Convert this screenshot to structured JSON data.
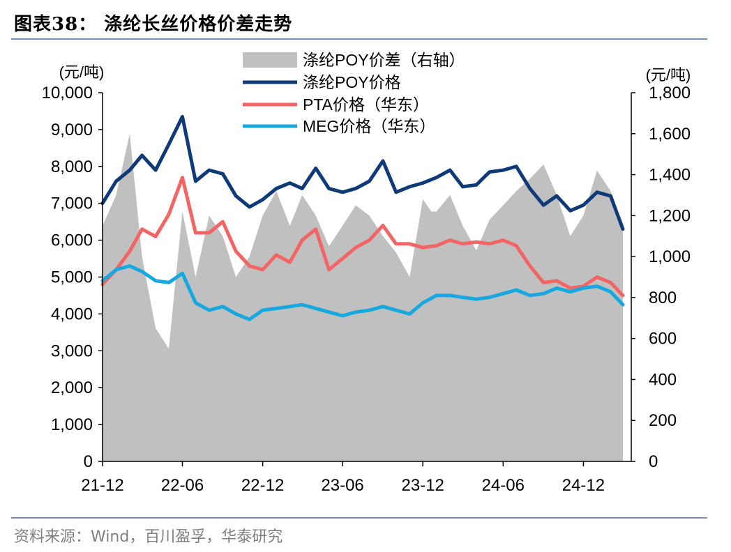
{
  "figure": {
    "title": "图表38：  涤纶长丝价格价差走势",
    "source": "资料来源：Wind，百川盈孚，华泰研究"
  },
  "colors": {
    "spread_fill": "#c0c0c0",
    "poy": "#0f3a78",
    "pta": "#f36565",
    "meg": "#18a8e0",
    "rule": "#6f8fb3"
  },
  "chart_data": {
    "type": "line",
    "secondary_type": "area",
    "title": "",
    "x_ticks": [
      "21-12",
      "22-06",
      "22-12",
      "23-06",
      "23-12",
      "24-06",
      "24-12"
    ],
    "x_range": [
      "2021-12",
      "2025-03"
    ],
    "left_axis": {
      "label": "(元/吨)",
      "min": 0,
      "max": 10000,
      "ticks": [
        "0",
        "1,000",
        "2,000",
        "3,000",
        "4,000",
        "5,000",
        "6,000",
        "7,000",
        "8,000",
        "9,000",
        "10,000"
      ]
    },
    "right_axis": {
      "label": "(元/吨)",
      "min": 0,
      "max": 1800,
      "ticks": [
        "0",
        "200",
        "400",
        "600",
        "800",
        "1,000",
        "1,200",
        "1,400",
        "1,600",
        "1,800"
      ]
    },
    "legend_position": "top-center",
    "series": [
      {
        "name": "涤纶POY价差（右轴）",
        "type": "area",
        "axis": "right",
        "points": [
          [
            "2021-12",
            1150
          ],
          [
            "2022-01",
            1300
          ],
          [
            "2022-02",
            1600
          ],
          [
            "2022-03",
            1000
          ],
          [
            "2022-04",
            650
          ],
          [
            "2022-05",
            550
          ],
          [
            "2022-06",
            1220
          ],
          [
            "2022-07",
            900
          ],
          [
            "2022-08",
            1200
          ],
          [
            "2022-09",
            1100
          ],
          [
            "2022-10",
            900
          ],
          [
            "2022-11",
            1000
          ],
          [
            "2022-12",
            1200
          ],
          [
            "2023-01",
            1320
          ],
          [
            "2023-02",
            1150
          ],
          [
            "2023-03",
            1300
          ],
          [
            "2023-04",
            1200
          ],
          [
            "2023-05",
            1050
          ],
          [
            "2023-06",
            1150
          ],
          [
            "2023-07",
            1250
          ],
          [
            "2023-08",
            1200
          ],
          [
            "2023-09",
            1100
          ],
          [
            "2023-10",
            1020
          ],
          [
            "2023-11",
            900
          ],
          [
            "2023-12",
            1280
          ],
          [
            "2023-12-20",
            1220
          ],
          [
            "2024-01",
            1220
          ],
          [
            "2024-02",
            1300
          ],
          [
            "2024-03",
            1150
          ],
          [
            "2024-04",
            1030
          ],
          [
            "2024-05",
            1180
          ],
          [
            "2024-06",
            1250
          ],
          [
            "2024-07",
            1320
          ],
          [
            "2024-08",
            1380
          ],
          [
            "2024-09",
            1450
          ],
          [
            "2024-10",
            1300
          ],
          [
            "2024-11",
            1100
          ],
          [
            "2024-12",
            1200
          ],
          [
            "2025-01",
            1420
          ],
          [
            "2025-02",
            1320
          ],
          [
            "2025-03",
            1150
          ]
        ]
      },
      {
        "name": "涤纶POY价格",
        "type": "line",
        "axis": "left",
        "points": [
          [
            "2021-12",
            7000
          ],
          [
            "2022-01",
            7600
          ],
          [
            "2022-02",
            7900
          ],
          [
            "2022-03",
            8300
          ],
          [
            "2022-04",
            7900
          ],
          [
            "2022-05",
            8600
          ],
          [
            "2022-06",
            9350
          ],
          [
            "2022-07",
            7600
          ],
          [
            "2022-08",
            7900
          ],
          [
            "2022-09",
            7800
          ],
          [
            "2022-10",
            7200
          ],
          [
            "2022-11",
            6900
          ],
          [
            "2022-12",
            7100
          ],
          [
            "2023-01",
            7400
          ],
          [
            "2023-02",
            7550
          ],
          [
            "2023-03",
            7400
          ],
          [
            "2023-04",
            7950
          ],
          [
            "2023-05",
            7400
          ],
          [
            "2023-06",
            7300
          ],
          [
            "2023-07",
            7400
          ],
          [
            "2023-08",
            7600
          ],
          [
            "2023-09",
            8150
          ],
          [
            "2023-10",
            7300
          ],
          [
            "2023-11",
            7450
          ],
          [
            "2023-12",
            7550
          ],
          [
            "2024-01",
            7700
          ],
          [
            "2024-02",
            7900
          ],
          [
            "2024-03",
            7450
          ],
          [
            "2024-04",
            7500
          ],
          [
            "2024-05",
            7850
          ],
          [
            "2024-06",
            7900
          ],
          [
            "2024-07",
            8000
          ],
          [
            "2024-08",
            7400
          ],
          [
            "2024-09",
            6950
          ],
          [
            "2024-10",
            7200
          ],
          [
            "2024-11",
            6800
          ],
          [
            "2024-12",
            6950
          ],
          [
            "2025-01",
            7300
          ],
          [
            "2025-02",
            7200
          ],
          [
            "2025-03",
            6300
          ]
        ]
      },
      {
        "name": "PTA价格（华东）",
        "type": "line",
        "axis": "left",
        "points": [
          [
            "2021-12",
            4800
          ],
          [
            "2022-01",
            5200
          ],
          [
            "2022-02",
            5700
          ],
          [
            "2022-03",
            6300
          ],
          [
            "2022-04",
            6100
          ],
          [
            "2022-05",
            6700
          ],
          [
            "2022-06",
            7700
          ],
          [
            "2022-07",
            6200
          ],
          [
            "2022-08",
            6200
          ],
          [
            "2022-09",
            6500
          ],
          [
            "2022-10",
            5700
          ],
          [
            "2022-11",
            5300
          ],
          [
            "2022-12",
            5200
          ],
          [
            "2023-01",
            5600
          ],
          [
            "2023-02",
            5400
          ],
          [
            "2023-03",
            6000
          ],
          [
            "2023-04",
            6300
          ],
          [
            "2023-05",
            5200
          ],
          [
            "2023-06",
            5500
          ],
          [
            "2023-07",
            5800
          ],
          [
            "2023-08",
            6000
          ],
          [
            "2023-09",
            6400
          ],
          [
            "2023-10",
            5900
          ],
          [
            "2023-11",
            5900
          ],
          [
            "2023-12",
            5800
          ],
          [
            "2024-01",
            5850
          ],
          [
            "2024-02",
            6000
          ],
          [
            "2024-03",
            5900
          ],
          [
            "2024-04",
            5950
          ],
          [
            "2024-05",
            5900
          ],
          [
            "2024-06",
            6000
          ],
          [
            "2024-07",
            5850
          ],
          [
            "2024-08",
            5300
          ],
          [
            "2024-09",
            4850
          ],
          [
            "2024-10",
            4900
          ],
          [
            "2024-11",
            4700
          ],
          [
            "2024-12",
            4750
          ],
          [
            "2025-01",
            5000
          ],
          [
            "2025-02",
            4850
          ],
          [
            "2025-03",
            4500
          ]
        ]
      },
      {
        "name": "MEG价格（华东）",
        "type": "line",
        "axis": "left",
        "points": [
          [
            "2021-12",
            4900
          ],
          [
            "2022-01",
            5200
          ],
          [
            "2022-02",
            5300
          ],
          [
            "2022-03",
            5150
          ],
          [
            "2022-04",
            4900
          ],
          [
            "2022-05",
            4850
          ],
          [
            "2022-06",
            5100
          ],
          [
            "2022-07",
            4300
          ],
          [
            "2022-08",
            4100
          ],
          [
            "2022-09",
            4200
          ],
          [
            "2022-10",
            4000
          ],
          [
            "2022-11",
            3850
          ],
          [
            "2022-12",
            4100
          ],
          [
            "2023-01",
            4150
          ],
          [
            "2023-02",
            4200
          ],
          [
            "2023-03",
            4250
          ],
          [
            "2023-04",
            4150
          ],
          [
            "2023-05",
            4050
          ],
          [
            "2023-06",
            3950
          ],
          [
            "2023-07",
            4050
          ],
          [
            "2023-08",
            4100
          ],
          [
            "2023-09",
            4200
          ],
          [
            "2023-10",
            4100
          ],
          [
            "2023-11",
            4000
          ],
          [
            "2023-12",
            4300
          ],
          [
            "2024-01",
            4500
          ],
          [
            "2024-02",
            4500
          ],
          [
            "2024-03",
            4450
          ],
          [
            "2024-04",
            4400
          ],
          [
            "2024-05",
            4450
          ],
          [
            "2024-06",
            4550
          ],
          [
            "2024-07",
            4650
          ],
          [
            "2024-08",
            4500
          ],
          [
            "2024-09",
            4550
          ],
          [
            "2024-10",
            4700
          ],
          [
            "2024-11",
            4600
          ],
          [
            "2024-12",
            4700
          ],
          [
            "2025-01",
            4750
          ],
          [
            "2025-02",
            4600
          ],
          [
            "2025-03",
            4250
          ]
        ]
      }
    ]
  }
}
